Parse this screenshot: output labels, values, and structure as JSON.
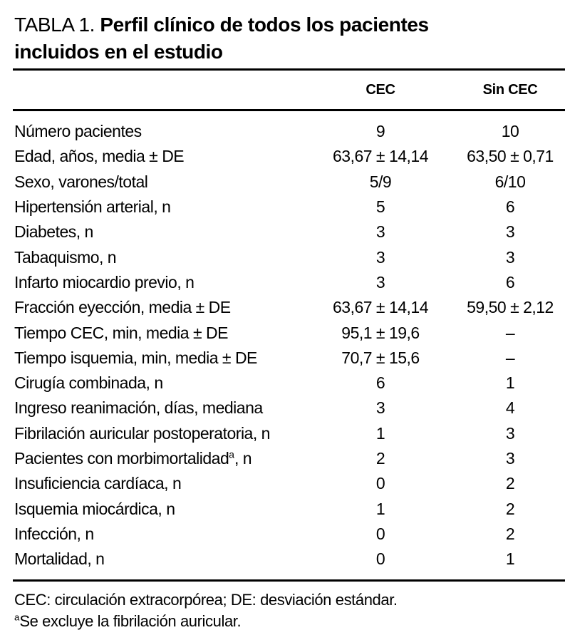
{
  "title": {
    "label": "TABLA 1. ",
    "text": "Perfil clínico de todos los pacientes incluidos en el estudio"
  },
  "table": {
    "columns": [
      "CEC",
      "Sin CEC"
    ],
    "rows": [
      {
        "label": "Número pacientes",
        "cec": "9",
        "sin_cec": "10"
      },
      {
        "label": "Edad, años, media ± DE",
        "cec": "63,67 ± 14,14",
        "sin_cec": "63,50 ± 0,71"
      },
      {
        "label": "Sexo, varones/total",
        "cec": "5/9",
        "sin_cec": "6/10"
      },
      {
        "label": "Hipertensión arterial, n",
        "cec": "5",
        "sin_cec": "6"
      },
      {
        "label": "Diabetes, n",
        "cec": "3",
        "sin_cec": "3"
      },
      {
        "label": "Tabaquismo, n",
        "cec": "3",
        "sin_cec": "3"
      },
      {
        "label": "Infarto miocardio previo, n",
        "cec": "3",
        "sin_cec": "6"
      },
      {
        "label": "Fracción eyección, media ± DE",
        "cec": "63,67 ± 14,14",
        "sin_cec": "59,50 ± 2,12"
      },
      {
        "label": "Tiempo CEC, min, media ± DE",
        "cec": "95,1 ± 19,6",
        "sin_cec": "–"
      },
      {
        "label": "Tiempo isquemia, min, media ± DE",
        "cec": "70,7 ± 15,6",
        "sin_cec": "–"
      },
      {
        "label": "Cirugía combinada, n",
        "cec": "6",
        "sin_cec": "1"
      },
      {
        "label": "Ingreso reanimación, días, mediana",
        "cec": "3",
        "sin_cec": "4"
      },
      {
        "label": "Fibrilación auricular postoperatoria, n",
        "cec": "1",
        "sin_cec": "3"
      },
      {
        "label": "Pacientes con morbimortalidad",
        "label_sup": "a",
        "label_suffix": ", n",
        "cec": "2",
        "sin_cec": "3"
      },
      {
        "label": "Insuficiencia cardíaca, n",
        "cec": "0",
        "sin_cec": "2"
      },
      {
        "label": "Isquemia miocárdica, n",
        "cec": "1",
        "sin_cec": "2"
      },
      {
        "label": "Infección, n",
        "cec": "0",
        "sin_cec": "2"
      },
      {
        "label": "Mortalidad, n",
        "cec": "0",
        "sin_cec": "1"
      }
    ]
  },
  "footnotes": {
    "line1": "CEC: circulación extracorpórea; DE: desviación estándar.",
    "line2_sup": "a",
    "line2": "Se excluye la fibrilación auricular."
  }
}
